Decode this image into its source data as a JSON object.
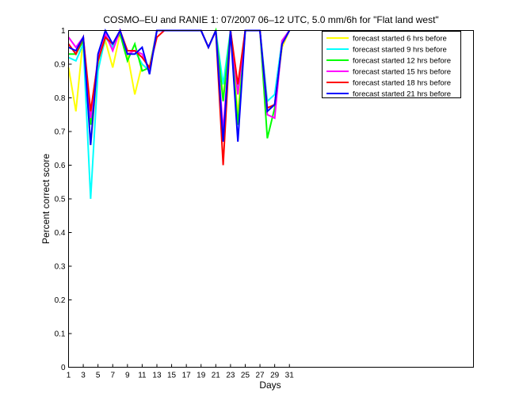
{
  "chart_data": {
    "type": "line",
    "title": "COSMO–EU and RANIE 1: 07/2007 06–12 UTC, 5.0 mm/6h for \"Flat land west\"",
    "xlabel": "Days",
    "ylabel": "Percent correct score",
    "xlim": [
      1,
      56
    ],
    "ylim": [
      0,
      1
    ],
    "x_ticks": [
      1,
      3,
      5,
      7,
      9,
      11,
      13,
      15,
      17,
      19,
      21,
      23,
      25,
      27,
      29,
      31
    ],
    "y_ticks": [
      0,
      0.1,
      0.2,
      0.3,
      0.4,
      0.5,
      0.6,
      0.7,
      0.8,
      0.9,
      1
    ],
    "y_tick_labels": [
      "0",
      "0.1",
      "0.2",
      "0.3",
      "0.4",
      "0.5",
      "0.6",
      "0.7",
      "0.8",
      "0.9",
      "1"
    ],
    "grid": false,
    "legend_position": "top-right",
    "x": [
      1,
      2,
      3,
      4,
      5,
      6,
      7,
      8,
      9,
      10,
      11,
      12,
      13,
      14,
      15,
      16,
      17,
      18,
      19,
      20,
      21,
      22,
      23,
      24,
      25,
      26,
      27,
      28,
      29,
      30,
      31
    ],
    "series": [
      {
        "name": "forecast started 6 hrs before",
        "color": "#ffff00",
        "values": [
          0.89,
          0.76,
          0.98,
          0.66,
          0.9,
          0.97,
          0.89,
          0.99,
          0.93,
          0.81,
          0.9,
          0.88,
          1.0,
          1.0,
          1.0,
          1.0,
          1.0,
          1.0,
          1.0,
          0.95,
          1.0,
          0.8,
          1.0,
          0.75,
          1.0,
          1.0,
          1.0,
          0.76,
          0.78,
          0.95,
          1.0
        ]
      },
      {
        "name": "forecast started 9 hrs before",
        "color": "#00ffff",
        "values": [
          0.92,
          0.91,
          0.96,
          0.5,
          0.88,
          0.98,
          0.95,
          1.0,
          0.93,
          0.94,
          0.9,
          0.88,
          1.0,
          1.0,
          1.0,
          1.0,
          1.0,
          1.0,
          1.0,
          0.95,
          1.0,
          0.84,
          1.0,
          0.82,
          1.0,
          1.0,
          1.0,
          0.79,
          0.81,
          0.97,
          1.0
        ]
      },
      {
        "name": "forecast started 12 hrs before",
        "color": "#00ff00",
        "values": [
          0.93,
          0.93,
          0.97,
          0.72,
          0.91,
          0.98,
          0.96,
          0.99,
          0.91,
          0.96,
          0.88,
          0.89,
          1.0,
          1.0,
          1.0,
          1.0,
          1.0,
          1.0,
          1.0,
          0.95,
          1.0,
          0.79,
          1.0,
          0.72,
          1.0,
          1.0,
          1.0,
          0.68,
          0.77,
          0.96,
          1.0
        ]
      },
      {
        "name": "forecast started 15 hrs before",
        "color": "#ff00ff",
        "values": [
          0.98,
          0.95,
          0.98,
          0.74,
          0.92,
          0.99,
          0.94,
          1.0,
          0.93,
          0.94,
          0.93,
          0.88,
          1.0,
          1.0,
          1.0,
          1.0,
          1.0,
          1.0,
          1.0,
          0.95,
          1.0,
          0.7,
          1.0,
          0.81,
          1.0,
          1.0,
          1.0,
          0.75,
          0.74,
          0.97,
          1.0
        ]
      },
      {
        "name": "forecast started 18 hrs before",
        "color": "#ff0000",
        "values": [
          0.96,
          0.93,
          0.98,
          0.76,
          0.91,
          0.98,
          0.96,
          1.0,
          0.94,
          0.94,
          0.92,
          0.89,
          0.98,
          1.0,
          1.0,
          1.0,
          1.0,
          1.0,
          1.0,
          0.95,
          1.0,
          0.6,
          1.0,
          0.84,
          1.0,
          1.0,
          1.0,
          0.77,
          0.78,
          0.96,
          1.0
        ]
      },
      {
        "name": "forecast started 21 hrs before",
        "color": "#0000ff",
        "values": [
          0.95,
          0.94,
          0.98,
          0.66,
          0.93,
          1.0,
          0.96,
          1.0,
          0.93,
          0.93,
          0.95,
          0.87,
          1.0,
          1.0,
          1.0,
          1.0,
          1.0,
          1.0,
          1.0,
          0.95,
          1.0,
          0.67,
          1.0,
          0.67,
          1.0,
          1.0,
          1.0,
          0.76,
          0.78,
          0.96,
          1.0
        ]
      }
    ]
  }
}
